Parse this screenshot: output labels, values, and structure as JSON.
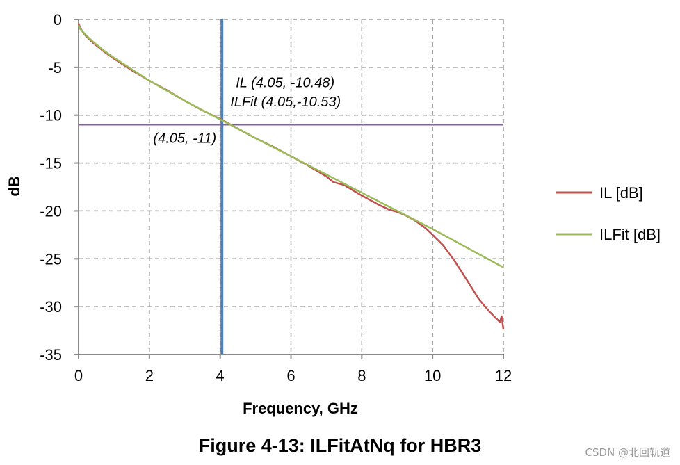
{
  "chart_data": {
    "type": "line",
    "xlabel": "Frequency, GHz",
    "ylabel": "dB",
    "xlim": [
      0,
      12
    ],
    "ylim": [
      -35,
      0
    ],
    "x_ticks": [
      0,
      2,
      4,
      6,
      8,
      10,
      12
    ],
    "y_ticks": [
      0,
      -5,
      -10,
      -15,
      -20,
      -25,
      -30,
      -35
    ],
    "grid": true,
    "legend_position": "right",
    "series": [
      {
        "name": "IL [dB]",
        "color": "#c0504d",
        "x": [
          0,
          0.05,
          0.1,
          0.2,
          0.4,
          0.7,
          1,
          1.5,
          2,
          2.5,
          3,
          3.5,
          4,
          4.05,
          4.5,
          5,
          5.5,
          6,
          6.5,
          7,
          7.2,
          7.5,
          8,
          8.5,
          8.8,
          9,
          9.2,
          9.5,
          9.8,
          10,
          10.3,
          10.6,
          11,
          11.3,
          11.6,
          11.9,
          11.95,
          12
        ],
        "values": [
          -0.4,
          -0.9,
          -1.2,
          -1.7,
          -2.4,
          -3.3,
          -4.1,
          -5.3,
          -6.4,
          -7.4,
          -8.5,
          -9.5,
          -10.4,
          -10.48,
          -11.4,
          -12.4,
          -13.3,
          -14.3,
          -15.3,
          -16.4,
          -17.0,
          -17.3,
          -18.4,
          -19.4,
          -19.9,
          -20.1,
          -20.4,
          -21.0,
          -21.8,
          -22.5,
          -23.6,
          -25.1,
          -27.4,
          -29.2,
          -30.5,
          -31.6,
          -31.0,
          -32.4
        ]
      },
      {
        "name": "ILFit [dB]",
        "color": "#9bbb59",
        "x": [
          0,
          0.05,
          0.1,
          0.2,
          0.4,
          0.7,
          1,
          1.5,
          2,
          3,
          4,
          4.05,
          5,
          6,
          7,
          8,
          9,
          10,
          11,
          12
        ],
        "values": [
          -0.6,
          -1.0,
          -1.2,
          -1.6,
          -2.3,
          -3.2,
          -4.0,
          -5.2,
          -6.4,
          -8.5,
          -10.45,
          -10.53,
          -12.4,
          -14.3,
          -16.2,
          -18.1,
          -20.0,
          -21.9,
          -23.9,
          -25.9
        ]
      }
    ],
    "reference_lines": [
      {
        "orientation": "vertical",
        "value": 4.05,
        "color": "#4f81bd"
      },
      {
        "orientation": "horizontal",
        "value": -11,
        "color": "#8064a2"
      }
    ],
    "annotations": [
      {
        "text": "IL (4.05, -10.48)",
        "x": 4.05,
        "y": -10.48
      },
      {
        "text": "ILFit (4.05,-10.53)",
        "x": 4.05,
        "y": -10.53
      },
      {
        "text": "(4.05, -11)",
        "x": 4.05,
        "y": -11
      }
    ]
  },
  "caption": "Figure 4-13: ILFitAtNq for HBR3",
  "watermark": "CSDN @北回轨道"
}
